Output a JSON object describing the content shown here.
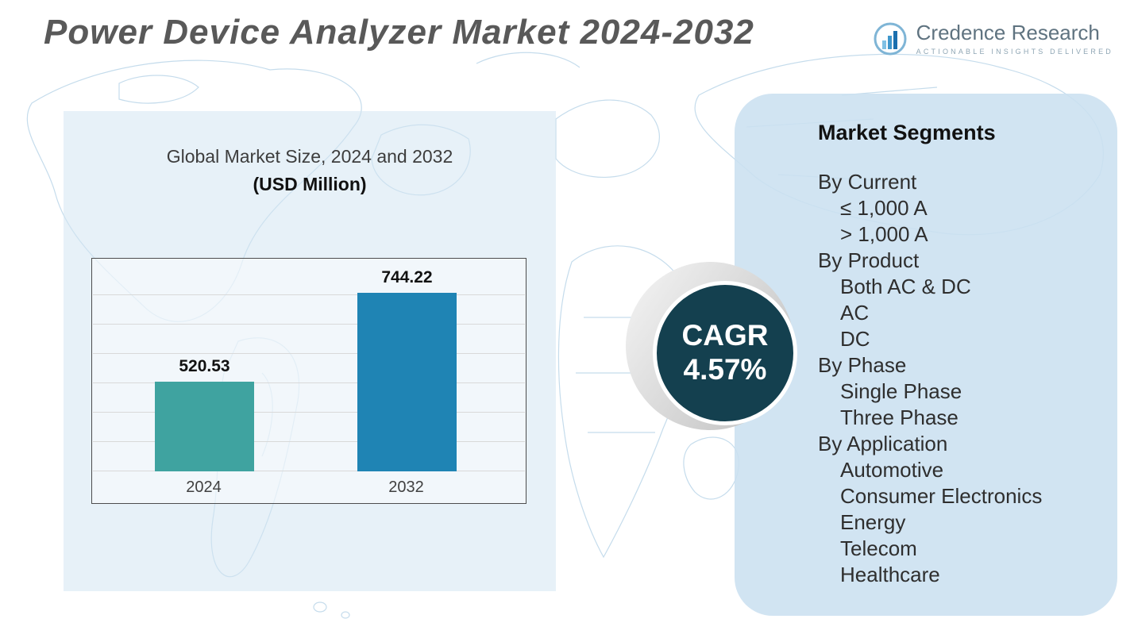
{
  "header": {
    "title": "Power Device Analyzer Market  2024-2032",
    "logo": {
      "brand": "Credence Research",
      "tagline": "Actionable Insights Delivered"
    }
  },
  "chart": {
    "subtitle_line1": "Global Market Size, 2024 and 2032",
    "subtitle_line2": "(USD Million)"
  },
  "chart_data": {
    "type": "bar",
    "title": "Global Market Size, 2024 and 2032 (USD Million)",
    "categories": [
      "2024",
      "2032"
    ],
    "values": [
      520.53,
      744.22
    ],
    "value_labels": [
      "520.53",
      "744.22"
    ],
    "xlabel": "",
    "ylabel": "",
    "ylim": [
      300,
      800
    ],
    "grid": true,
    "legend": false,
    "bar_colors": [
      "#3fa3a0",
      "#1f84b4"
    ]
  },
  "cagr": {
    "label": "CAGR",
    "value": "4.57%"
  },
  "segments": {
    "title": "Market Segments",
    "groups": [
      {
        "label": "By Current",
        "items": [
          "≤ 1,000 A",
          "> 1,000 A"
        ]
      },
      {
        "label": "By Product",
        "items": [
          "Both AC & DC",
          "AC",
          "DC"
        ]
      },
      {
        "label": "By Phase",
        "items": [
          "Single Phase",
          "Three Phase"
        ]
      },
      {
        "label": "By Application",
        "items": [
          "Automotive",
          "Consumer Electronics",
          "Energy",
          "Telecom",
          "Healthcare"
        ]
      }
    ]
  },
  "colors": {
    "bar_2024": "#3fa3a0",
    "bar_2032": "#1f84b4",
    "cagr_circle": "#14404f",
    "segments_panel": "#cbe0f0",
    "chart_panel": "#d4e5f2",
    "title_text": "#595959"
  }
}
